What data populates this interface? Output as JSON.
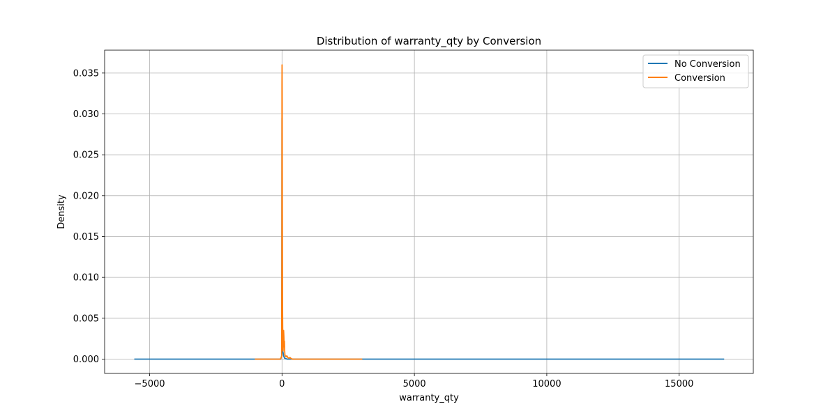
{
  "chart_data": {
    "type": "line",
    "title": "Distribution of warranty_qty by Conversion",
    "xlabel": "warranty_qty",
    "ylabel": "Density",
    "xlim": [
      -6700,
      17800
    ],
    "ylim": [
      -0.00175,
      0.0378
    ],
    "xticks": [
      -5000,
      0,
      5000,
      10000,
      15000
    ],
    "xtick_labels": [
      "−5000",
      "0",
      "5000",
      "10000",
      "15000"
    ],
    "yticks": [
      0.0,
      0.005,
      0.01,
      0.015,
      0.02,
      0.025,
      0.03,
      0.035
    ],
    "ytick_labels": [
      "0.000",
      "0.005",
      "0.010",
      "0.015",
      "0.020",
      "0.025",
      "0.030",
      "0.035"
    ],
    "grid": true,
    "legend_position": "top-right",
    "series": [
      {
        "name": "No Conversion",
        "color": "#1f77b4",
        "x": [
          -5580,
          -1000,
          -50,
          -10,
          -3,
          0,
          3,
          10,
          30,
          60,
          100,
          200,
          3000,
          16700
        ],
        "y": [
          0.0,
          0.0,
          0.0,
          0.0004,
          0.018,
          0.0295,
          0.022,
          0.0025,
          0.001,
          0.0004,
          0.0001,
          0.0,
          0.0,
          0.0
        ]
      },
      {
        "name": "Conversion",
        "color": "#ff7f0e",
        "x": [
          -1030,
          -60,
          -15,
          -5,
          -1,
          2,
          6,
          12,
          20,
          30,
          40,
          50,
          60,
          70,
          80,
          90,
          100,
          110,
          125,
          140,
          160,
          180,
          220,
          260,
          300,
          350,
          400,
          600,
          3030
        ],
        "y": [
          0.0,
          0.0,
          0.0003,
          0.012,
          0.0335,
          0.036,
          0.0315,
          0.018,
          0.006,
          0.0015,
          0.001,
          0.002,
          0.0035,
          0.0028,
          0.0015,
          0.0022,
          0.001,
          0.0005,
          0.0004,
          0.0003,
          0.0003,
          0.0004,
          0.0002,
          0.0001,
          0.0002,
          5e-05,
          0.0,
          0.0,
          0.0
        ]
      }
    ]
  }
}
